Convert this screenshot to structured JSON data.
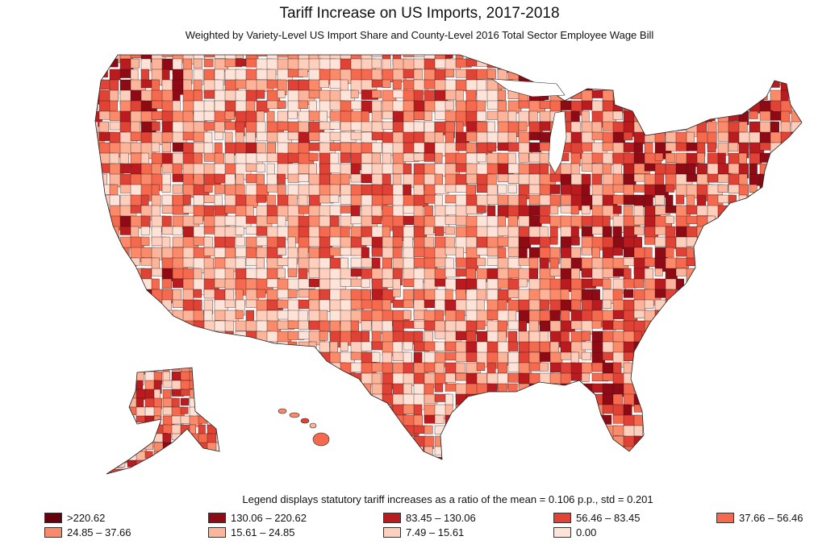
{
  "title": "Tariff Increase on US Imports, 2017-2018",
  "subtitle": "Weighted by Variety-Level US Import Share and County-Level 2016 Total Sector Employee Wage Bill",
  "legend_note": "Legend displays  statutory tariff increases as a ratio of the mean = 0.106 p.p., std = 0.201",
  "legend": [
    {
      "label": ">220.62",
      "color": "#67000d"
    },
    {
      "label": "24.85 – 37.66",
      "color": "#fb8a6a"
    },
    {
      "label": "130.06 – 220.62",
      "color": "#8e0a14"
    },
    {
      "label": "15.61 – 24.85",
      "color": "#fcb49b"
    },
    {
      "label": "83.45 – 130.06",
      "color": "#b91b1f"
    },
    {
      "label": "7.49 – 15.61",
      "color": "#fdcfbc"
    },
    {
      "label": "56.46 – 83.45",
      "color": "#e04335"
    },
    {
      "label": "0.00",
      "color": "#fee4d8"
    },
    {
      "label": "37.66 – 56.46",
      "color": "#f56a4f"
    }
  ]
}
